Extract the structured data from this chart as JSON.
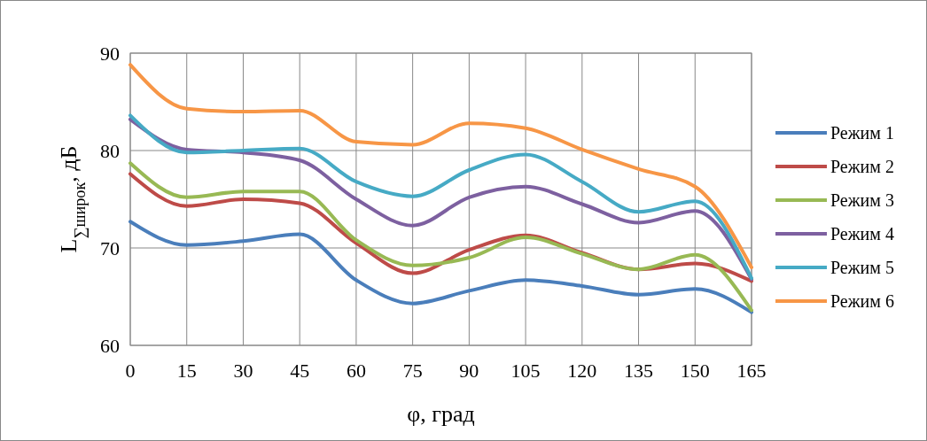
{
  "chart_data": {
    "type": "line",
    "xlabel": "φ, град",
    "ylabel": "L$_{∑широк}$, дБ",
    "categories": [
      "0",
      "15",
      "30",
      "45",
      "60",
      "75",
      "90",
      "105",
      "120",
      "135",
      "150",
      "165"
    ],
    "series": [
      {
        "name": "Режим 1",
        "color": "#4a7ebb",
        "values": [
          72.7,
          70.3,
          70.7,
          71.4,
          66.7,
          64.3,
          65.6,
          66.7,
          66.1,
          65.2,
          65.8,
          63.4
        ]
      },
      {
        "name": "Режим 2",
        "color": "#be4b48",
        "values": [
          77.6,
          74.3,
          75.0,
          74.6,
          70.5,
          67.4,
          69.8,
          71.3,
          69.5,
          67.8,
          68.4,
          66.6
        ]
      },
      {
        "name": "Режим 3",
        "color": "#98b954",
        "values": [
          78.7,
          75.2,
          75.8,
          75.8,
          70.8,
          68.2,
          69.0,
          71.1,
          69.4,
          67.8,
          69.3,
          63.6
        ]
      },
      {
        "name": "Режим 4",
        "color": "#7d60a0",
        "values": [
          83.2,
          80.1,
          79.8,
          79.0,
          75.0,
          72.3,
          75.2,
          76.3,
          74.5,
          72.6,
          73.8,
          66.8
        ]
      },
      {
        "name": "Режим 5",
        "color": "#46aac5",
        "values": [
          83.6,
          79.8,
          80.0,
          80.2,
          76.8,
          75.3,
          78.0,
          79.6,
          76.8,
          73.7,
          74.8,
          66.9
        ]
      },
      {
        "name": "Режим 6",
        "color": "#f79646",
        "values": [
          88.8,
          84.3,
          84.0,
          84.1,
          80.9,
          80.6,
          82.8,
          82.3,
          80.1,
          78.1,
          76.3,
          68.0
        ]
      }
    ],
    "ylim": [
      60,
      90
    ],
    "yticks": [
      60,
      70,
      80,
      90
    ],
    "grid": true,
    "legend": "right",
    "marker": "none",
    "line_style": "solid"
  }
}
